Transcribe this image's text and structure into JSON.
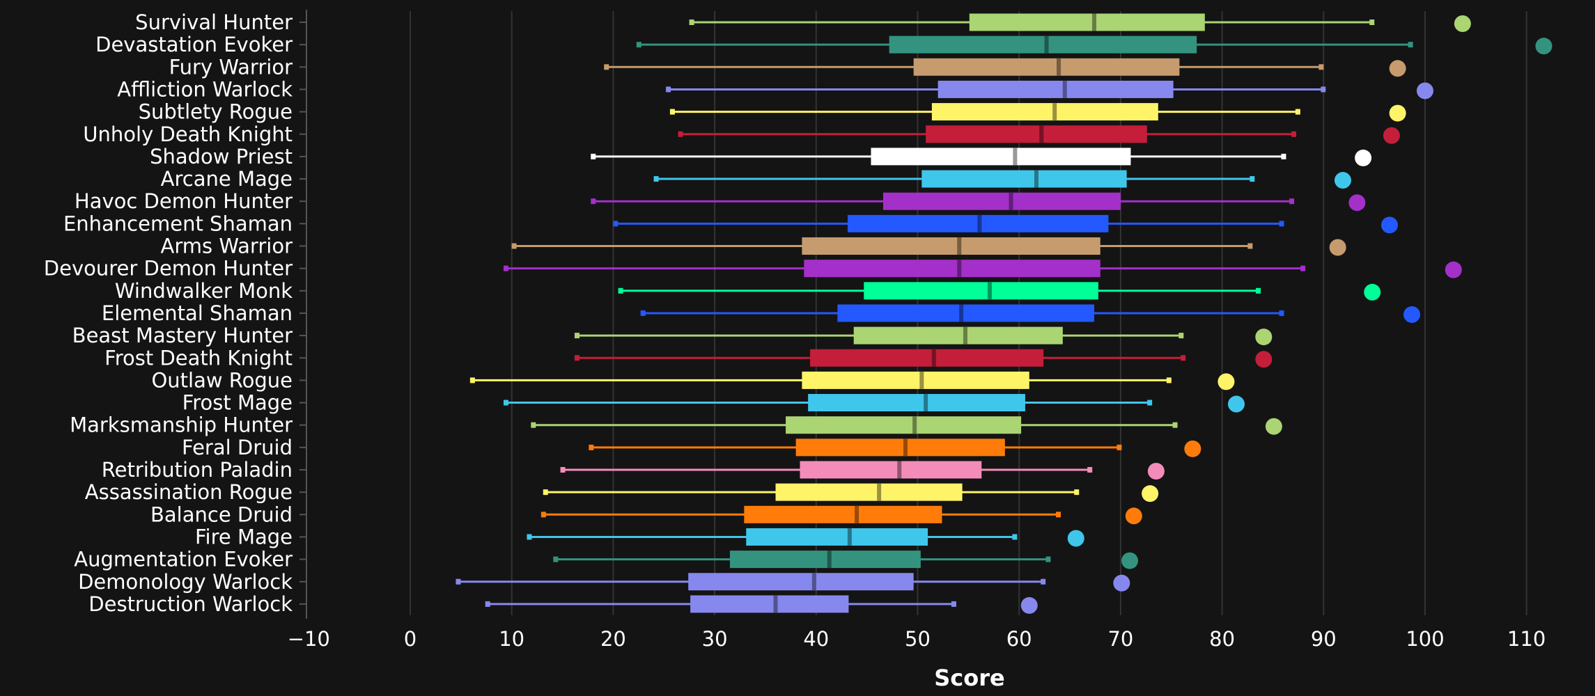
{
  "chart_data": {
    "type": "box",
    "xlabel": "Score",
    "ylabel": "",
    "title": "",
    "xlim": [
      -10,
      112
    ],
    "xticks": [
      -10,
      0,
      10,
      20,
      30,
      40,
      50,
      60,
      70,
      80,
      90,
      100,
      110
    ],
    "grid": "vertical",
    "background": "#141414",
    "fields": [
      "min",
      "q1",
      "median",
      "q3",
      "max",
      "point"
    ],
    "series": [
      {
        "name": "Survival Hunter",
        "color": "#abd473",
        "values": [
          27.7,
          55.1,
          67.4,
          78.3,
          94.8,
          103.7
        ]
      },
      {
        "name": "Devastation Evoker",
        "color": "#33937f",
        "values": [
          22.5,
          47.2,
          62.7,
          77.5,
          98.6,
          111.7
        ]
      },
      {
        "name": "Fury Warrior",
        "color": "#c69b6d",
        "values": [
          19.3,
          49.6,
          63.9,
          75.8,
          89.8,
          97.3
        ]
      },
      {
        "name": "Affliction Warlock",
        "color": "#8788ee",
        "values": [
          25.4,
          52.0,
          64.5,
          75.2,
          90.0,
          100.0
        ]
      },
      {
        "name": "Subtlety Rogue",
        "color": "#fff468",
        "values": [
          25.8,
          51.4,
          63.5,
          73.7,
          87.5,
          97.3
        ]
      },
      {
        "name": "Unholy Death Knight",
        "color": "#c41e3a",
        "values": [
          26.6,
          50.8,
          62.2,
          72.6,
          87.1,
          96.7
        ]
      },
      {
        "name": "Shadow Priest",
        "color": "#ffffff",
        "values": [
          18.0,
          45.4,
          59.6,
          71.0,
          86.1,
          93.9
        ]
      },
      {
        "name": "Arcane Mage",
        "color": "#3fc7eb",
        "values": [
          24.2,
          50.4,
          61.7,
          70.6,
          83.0,
          91.9
        ]
      },
      {
        "name": "Havoc Demon Hunter",
        "color": "#a330c9",
        "values": [
          18.0,
          46.6,
          59.2,
          70.0,
          86.9,
          93.3
        ]
      },
      {
        "name": "Enhancement Shaman",
        "color": "#2459ff",
        "values": [
          20.2,
          43.1,
          56.1,
          68.8,
          85.9,
          96.5
        ]
      },
      {
        "name": "Arms Warrior",
        "color": "#c69b6d",
        "values": [
          10.2,
          38.6,
          54.1,
          68.0,
          82.8,
          91.4
        ]
      },
      {
        "name": "Devourer Demon Hunter",
        "color": "#a330c9",
        "values": [
          9.4,
          38.8,
          54.1,
          68.0,
          88.0,
          102.8
        ]
      },
      {
        "name": "Windwalker Monk",
        "color": "#00ff98",
        "values": [
          20.7,
          44.7,
          57.1,
          67.8,
          83.6,
          94.8
        ]
      },
      {
        "name": "Elemental Shaman",
        "color": "#2459ff",
        "values": [
          22.9,
          42.1,
          54.3,
          67.4,
          85.9,
          98.7
        ]
      },
      {
        "name": "Beast Mastery Hunter",
        "color": "#abd473",
        "values": [
          16.4,
          43.7,
          54.7,
          64.3,
          76.0,
          84.1
        ]
      },
      {
        "name": "Frost Death Knight",
        "color": "#c41e3a",
        "values": [
          16.4,
          39.4,
          51.6,
          62.4,
          76.2,
          84.1
        ]
      },
      {
        "name": "Outlaw Rogue",
        "color": "#fff468",
        "values": [
          6.1,
          38.6,
          50.4,
          61.0,
          74.8,
          80.4
        ]
      },
      {
        "name": "Frost Mage",
        "color": "#3fc7eb",
        "values": [
          9.4,
          39.2,
          50.8,
          60.6,
          72.9,
          81.4
        ]
      },
      {
        "name": "Marksmanship Hunter",
        "color": "#abd473",
        "values": [
          12.1,
          37.0,
          49.7,
          60.2,
          75.4,
          85.1
        ]
      },
      {
        "name": "Feral Druid",
        "color": "#ff7c0a",
        "values": [
          17.8,
          38.0,
          48.8,
          58.6,
          69.9,
          77.1
        ]
      },
      {
        "name": "Retribution Paladin",
        "color": "#f48cba",
        "values": [
          15.0,
          38.4,
          48.2,
          56.3,
          67.0,
          73.5
        ]
      },
      {
        "name": "Assassination Rogue",
        "color": "#fff468",
        "values": [
          13.3,
          36.0,
          46.2,
          54.4,
          65.7,
          72.9
        ]
      },
      {
        "name": "Balance Druid",
        "color": "#ff7c0a",
        "values": [
          13.1,
          32.9,
          44.0,
          52.4,
          63.9,
          71.3
        ]
      },
      {
        "name": "Fire Mage",
        "color": "#3fc7eb",
        "values": [
          11.7,
          33.1,
          43.3,
          51.0,
          59.6,
          65.6
        ]
      },
      {
        "name": "Augmentation Evoker",
        "color": "#33937f",
        "values": [
          14.3,
          31.5,
          41.3,
          50.3,
          62.9,
          70.9
        ]
      },
      {
        "name": "Demonology Warlock",
        "color": "#8788ee",
        "values": [
          4.7,
          27.4,
          39.8,
          49.6,
          62.4,
          70.1
        ]
      },
      {
        "name": "Destruction Warlock",
        "color": "#8788ee",
        "values": [
          7.6,
          27.6,
          36.0,
          43.2,
          53.6,
          61.0
        ]
      }
    ]
  }
}
